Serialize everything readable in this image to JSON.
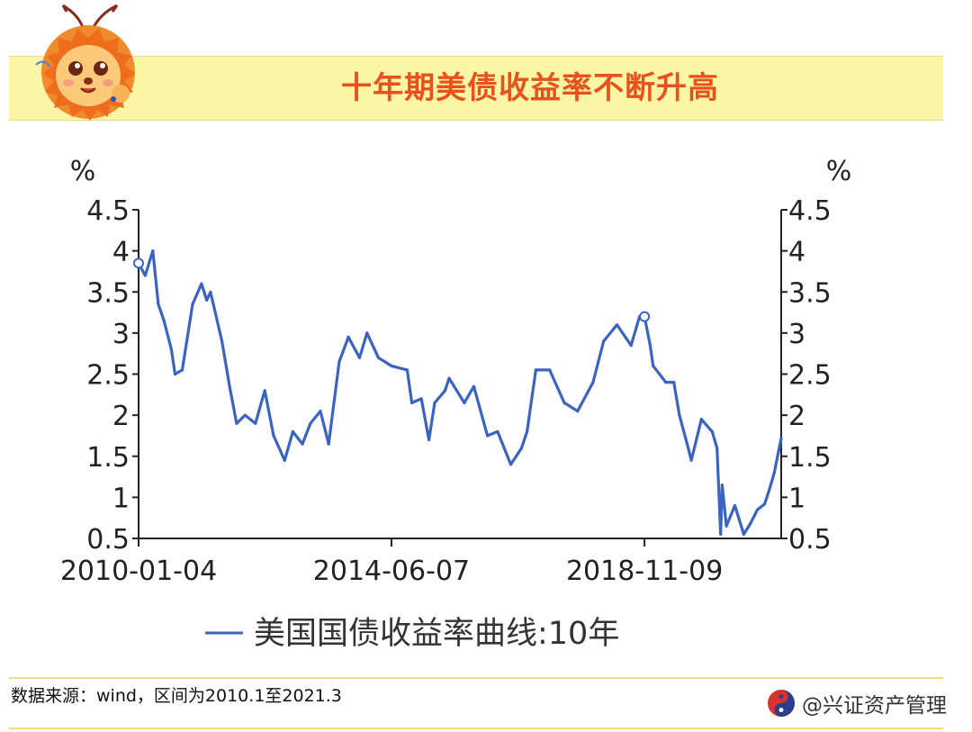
{
  "header": {
    "title": "十年期美债收益率不断升高"
  },
  "chart_data": {
    "type": "line",
    "title": "十年期美债收益率不断升高",
    "y_unit_left": "%",
    "y_unit_right": "%",
    "ylim": [
      0.5,
      4.5
    ],
    "yticks": [
      "4.5",
      "4",
      "3.5",
      "3",
      "2.5",
      "2",
      "1.5",
      "1",
      "0.5"
    ],
    "x_tick_labels": [
      "2010-01-04",
      "2014-06-07",
      "2018-11-09"
    ],
    "x_range": [
      "2010-01-04",
      "2021-03-31"
    ],
    "legend_position": "bottom",
    "colors": {
      "series": "#3a63c2"
    },
    "series": [
      {
        "name": "美国国债收益率曲线:10年",
        "x": [
          "2010-01-04",
          "2010-02-15",
          "2010-04-05",
          "2010-05-10",
          "2010-06-15",
          "2010-08-01",
          "2010-08-25",
          "2010-10-10",
          "2010-12-15",
          "2011-02-10",
          "2011-03-15",
          "2011-04-08",
          "2011-06-20",
          "2011-08-08",
          "2011-09-22",
          "2011-11-15",
          "2012-01-20",
          "2012-03-20",
          "2012-05-15",
          "2012-07-25",
          "2012-09-15",
          "2012-11-15",
          "2013-01-05",
          "2013-03-10",
          "2013-05-02",
          "2013-07-08",
          "2013-09-05",
          "2013-11-15",
          "2014-01-02",
          "2014-03-15",
          "2014-06-07",
          "2014-09-15",
          "2014-10-15",
          "2014-12-15",
          "2015-02-01",
          "2015-03-10",
          "2015-05-15",
          "2015-06-10",
          "2015-09-15",
          "2015-11-15",
          "2016-02-10",
          "2016-04-15",
          "2016-07-08",
          "2016-09-15",
          "2016-10-20",
          "2016-12-15",
          "2017-03-13",
          "2017-06-15",
          "2017-09-08",
          "2017-12-15",
          "2018-02-21",
          "2018-05-17",
          "2018-08-15",
          "2018-10-08",
          "2018-11-09",
          "2018-12-15",
          "2019-01-03",
          "2019-03-25",
          "2019-05-15",
          "2019-06-20",
          "2019-08-15",
          "2019-09-04",
          "2019-11-07",
          "2020-01-15",
          "2020-02-15",
          "2020-03-09",
          "2020-03-19",
          "2020-04-15",
          "2020-06-08",
          "2020-08-04",
          "2020-09-15",
          "2020-10-30",
          "2020-12-15",
          "2021-01-15",
          "2021-02-15",
          "2021-03-31"
        ],
        "values": [
          3.85,
          3.7,
          4.0,
          3.35,
          3.15,
          2.8,
          2.5,
          2.55,
          3.35,
          3.6,
          3.4,
          3.5,
          2.9,
          2.35,
          1.9,
          2.0,
          1.9,
          2.3,
          1.75,
          1.45,
          1.8,
          1.65,
          1.9,
          2.05,
          1.65,
          2.65,
          2.95,
          2.7,
          3.0,
          2.7,
          2.6,
          2.55,
          2.15,
          2.2,
          1.7,
          2.15,
          2.3,
          2.45,
          2.15,
          2.35,
          1.75,
          1.8,
          1.4,
          1.6,
          1.8,
          2.55,
          2.55,
          2.15,
          2.05,
          2.4,
          2.9,
          3.1,
          2.85,
          3.2,
          3.2,
          2.85,
          2.6,
          2.4,
          2.4,
          2.0,
          1.6,
          1.45,
          1.95,
          1.8,
          1.6,
          0.55,
          1.15,
          0.65,
          0.9,
          0.55,
          0.68,
          0.85,
          0.92,
          1.1,
          1.3,
          1.72
        ]
      }
    ]
  },
  "footer": {
    "source": "数据来源：wind，区间为2010.1至2021.3",
    "brand": "@兴证资产管理"
  }
}
